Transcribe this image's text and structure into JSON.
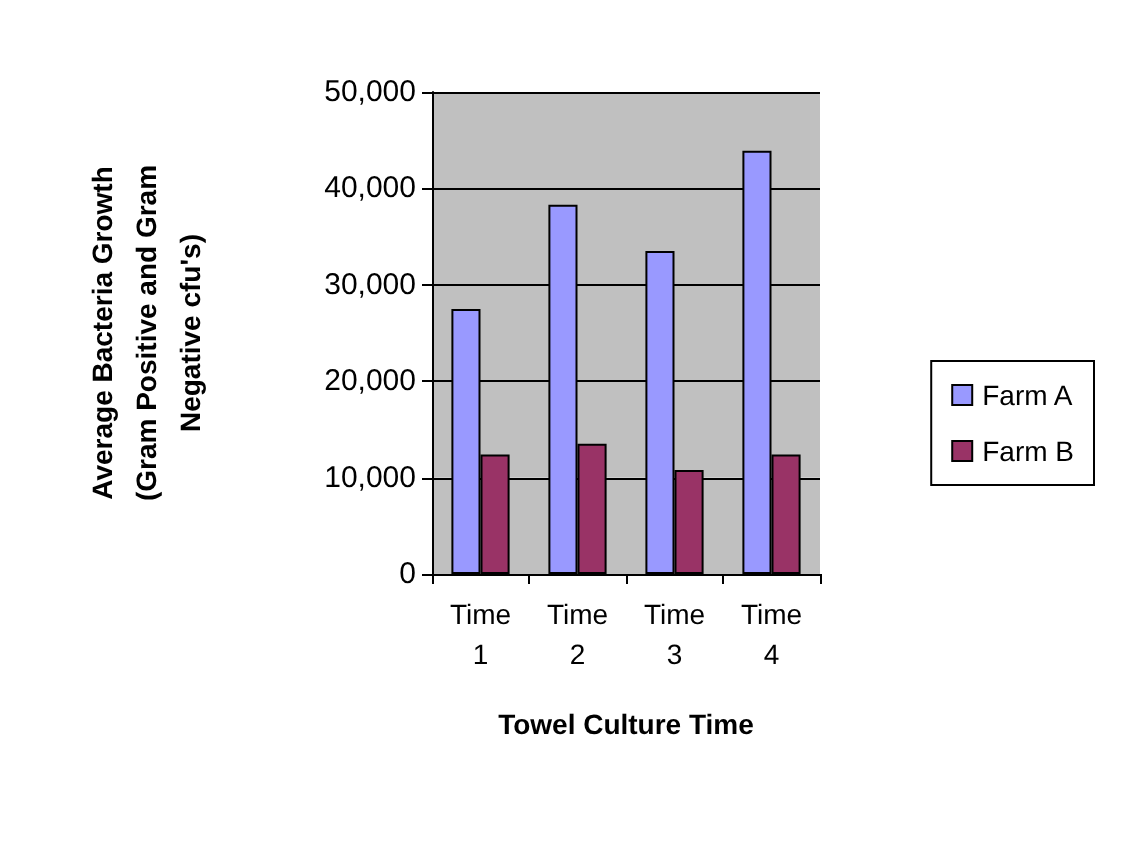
{
  "chart_data": {
    "type": "bar",
    "xlabel": "Towel Culture Time",
    "ylabel": "Average Bacteria Growth\n(Gram Positive and Gram\nNegative cfu's)",
    "categories": [
      "Time 1",
      "Time 2",
      "Time 3",
      "Time 4"
    ],
    "series": [
      {
        "name": "Farm A",
        "color": "#9999ff",
        "values": [
          27500,
          38300,
          33500,
          43900
        ]
      },
      {
        "name": "Farm B",
        "color": "#993366",
        "values": [
          12400,
          13500,
          10800,
          12400
        ]
      }
    ],
    "ylim": [
      0,
      50000
    ],
    "yticks": [
      0,
      {
        "value": 10000,
        "label": "10,000"
      },
      {
        "value": 20000,
        "label": "20,000"
      },
      {
        "value": 30000,
        "label": "30,000"
      },
      {
        "value": 40000,
        "label": "40,000"
      },
      {
        "value": 50000,
        "label": "50,000"
      }
    ],
    "grid": "y",
    "legend": "right"
  }
}
